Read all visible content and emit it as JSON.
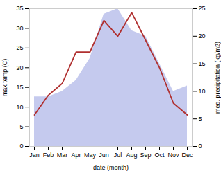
{
  "chart_data": {
    "type": "line",
    "categories": [
      "Jan",
      "Feb",
      "Mar",
      "Apr",
      "May",
      "Jun",
      "Jul",
      "Aug",
      "Sep",
      "Oct",
      "Nov",
      "Dec"
    ],
    "series": [
      {
        "type": "area",
        "axis": "y2",
        "color": "#c5caee",
        "values": [
          9,
          9,
          10,
          12,
          16,
          24,
          25,
          21,
          20,
          15,
          10,
          11
        ]
      },
      {
        "type": "line",
        "color": "#b03030",
        "values": [
          8,
          13,
          16,
          24,
          24,
          32,
          28,
          34,
          27,
          20,
          11,
          8
        ]
      }
    ],
    "xlabel": "date (month)",
    "ylabel": "max temp (C)",
    "y2label": "med. precipitation (kg/m2)",
    "ylim": [
      0,
      35
    ],
    "yticks": [
      0,
      5,
      10,
      15,
      20,
      25,
      30,
      35
    ],
    "y2lim": [
      0,
      25
    ],
    "y2ticks": [
      0,
      5,
      10,
      15,
      20,
      25
    ]
  }
}
